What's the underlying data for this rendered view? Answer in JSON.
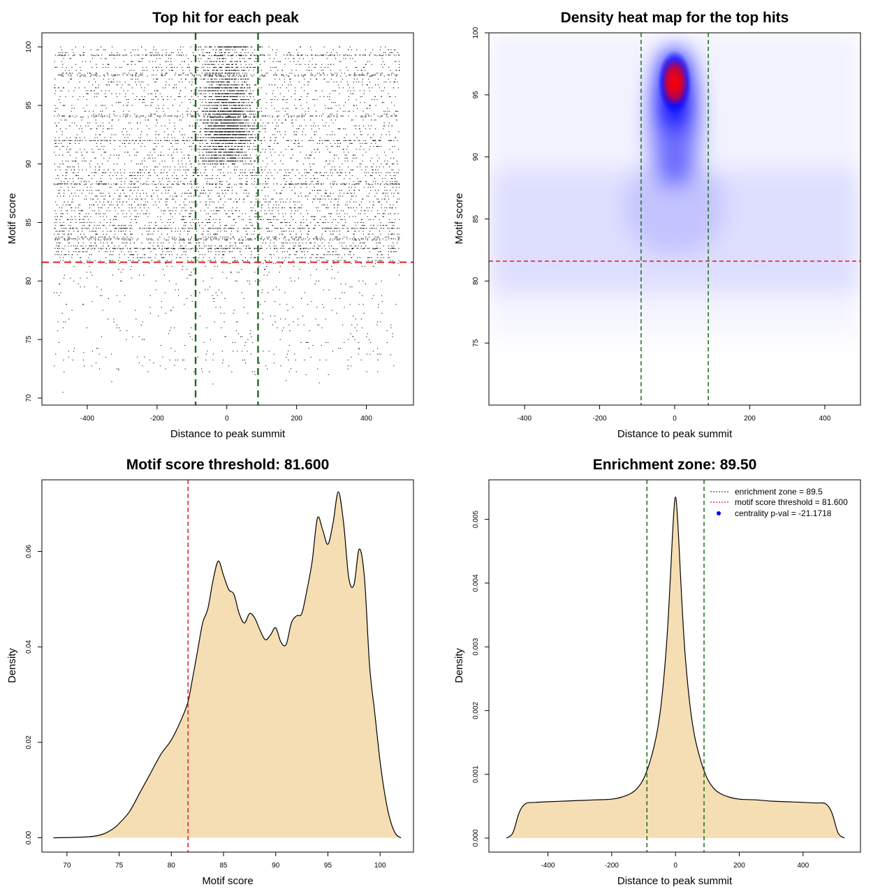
{
  "colors": {
    "threshold": "#e31a1c",
    "zone": "#1a6e1a",
    "fill": "#f5deb3",
    "heat_low": "#ffffff",
    "heat_mid": "#0000ff",
    "heat_high": "#ff0000",
    "points": "#000000"
  },
  "chart_data": [
    {
      "id": "scatter",
      "type": "scatter",
      "title": "Top hit for each peak",
      "xlabel": "Distance to peak summit",
      "ylabel": "Motif score",
      "xlim": [
        -530,
        535
      ],
      "ylim": [
        69.4,
        101.2
      ],
      "xticks": [
        -400,
        -200,
        0,
        200,
        400
      ],
      "yticks": [
        70,
        75,
        80,
        85,
        90,
        95,
        100
      ],
      "hlines": [
        81.6
      ],
      "vlines": [
        -89.5,
        89.5
      ],
      "data_range": {
        "x": [
          -495,
          495
        ],
        "y": [
          70.5,
          100
        ]
      },
      "note_points": "Several thousand motif hits, densest near x = 0 and y between 84 and 100; points rendered procedurally."
    },
    {
      "id": "heatmap",
      "type": "heatmap",
      "title": "Density heat map for the top hits",
      "xlabel": "Distance to peak summit",
      "ylabel": "Motif score",
      "xlim": [
        -495,
        495
      ],
      "ylim": [
        70,
        100
      ],
      "xticks": [
        -400,
        -200,
        0,
        200,
        400
      ],
      "yticks": [
        75,
        80,
        85,
        90,
        95
      ],
      "ytick_top": 100,
      "hlines": [
        81.6
      ],
      "vlines": [
        -89.5,
        89.5
      ],
      "hotspot": {
        "x": 0,
        "y": 96
      }
    },
    {
      "id": "score-density",
      "type": "area",
      "title": "Motif score threshold: 81.600",
      "xlabel": "Motif score",
      "ylabel": "Density",
      "xlim": [
        67.6,
        103.2
      ],
      "ylim": [
        -0.003,
        0.075
      ],
      "xticks": [
        70,
        75,
        80,
        85,
        90,
        95,
        100
      ],
      "yticks": [
        0.0,
        0.02,
        0.04,
        0.06
      ],
      "ytick_labels": [
        "0.00",
        "0.02",
        "0.04",
        "0.06"
      ],
      "vlines": [
        81.6
      ],
      "x": [
        68.7,
        72,
        73.5,
        74.5,
        75,
        76,
        77,
        78,
        79,
        80,
        81,
        81.6,
        82,
        82.5,
        83,
        83.5,
        84,
        84.5,
        85,
        85.5,
        86,
        86.5,
        87,
        87.5,
        88,
        88.5,
        89,
        89.5,
        90,
        90.5,
        91,
        91.5,
        92,
        92.5,
        93,
        93.5,
        94,
        94.5,
        95,
        95.5,
        96,
        96.5,
        97,
        97.5,
        98,
        98.5,
        99,
        99.5,
        100,
        100.5,
        101,
        101.5,
        102
      ],
      "y": [
        0,
        0.0002,
        0.0008,
        0.002,
        0.003,
        0.0055,
        0.0095,
        0.0135,
        0.0175,
        0.0205,
        0.025,
        0.0285,
        0.033,
        0.039,
        0.045,
        0.048,
        0.054,
        0.058,
        0.055,
        0.052,
        0.051,
        0.047,
        0.045,
        0.047,
        0.046,
        0.0435,
        0.0415,
        0.0425,
        0.044,
        0.041,
        0.0405,
        0.045,
        0.0465,
        0.047,
        0.052,
        0.058,
        0.067,
        0.0645,
        0.0615,
        0.066,
        0.0725,
        0.066,
        0.0545,
        0.053,
        0.0605,
        0.0545,
        0.036,
        0.026,
        0.016,
        0.0085,
        0.0035,
        0.0008,
        0
      ]
    },
    {
      "id": "distance-density",
      "type": "area",
      "title": "Enrichment zone: 89.50",
      "xlabel": "Distance to peak summit",
      "ylabel": "Density",
      "xlim": [
        -585,
        580
      ],
      "ylim": [
        -0.00022,
        0.00562
      ],
      "xticks": [
        -400,
        -200,
        0,
        200,
        400
      ],
      "yticks": [
        0.0,
        0.001,
        0.002,
        0.003,
        0.004,
        0.005
      ],
      "ytick_labels": [
        "0.000",
        "0.001",
        "0.002",
        "0.003",
        "0.004",
        "0.005"
      ],
      "vlines": [
        -89.5,
        89.5
      ],
      "x": [
        -530,
        -510,
        -490,
        -470,
        -440,
        -400,
        -350,
        -300,
        -250,
        -200,
        -170,
        -140,
        -120,
        -100,
        -80,
        -60,
        -45,
        -30,
        -20,
        -10,
        -4,
        0,
        4,
        10,
        20,
        30,
        45,
        60,
        80,
        100,
        120,
        140,
        170,
        200,
        250,
        300,
        350,
        400,
        440,
        470,
        490,
        510,
        530
      ],
      "y": [
        0,
        8e-05,
        0.0004,
        0.00054,
        0.00056,
        0.00057,
        0.00058,
        0.00059,
        0.0006,
        0.00061,
        0.00064,
        0.0007,
        0.00078,
        0.00093,
        0.0012,
        0.0016,
        0.0021,
        0.0029,
        0.0037,
        0.0047,
        0.0052,
        0.00535,
        0.0052,
        0.0047,
        0.0037,
        0.0029,
        0.0021,
        0.0016,
        0.0012,
        0.00093,
        0.00078,
        0.0007,
        0.00064,
        0.00061,
        0.0006,
        0.00058,
        0.00057,
        0.00056,
        0.00055,
        0.00054,
        0.0004,
        8e-05,
        0
      ],
      "legend": [
        {
          "label": "enrichment zone = 89.5",
          "style": "zone"
        },
        {
          "label": "motif score threshold = 81.600",
          "style": "threshold"
        },
        {
          "label": "centrality p-val = -21.1718",
          "style": "dot"
        }
      ],
      "legend_position": "top-right"
    }
  ]
}
